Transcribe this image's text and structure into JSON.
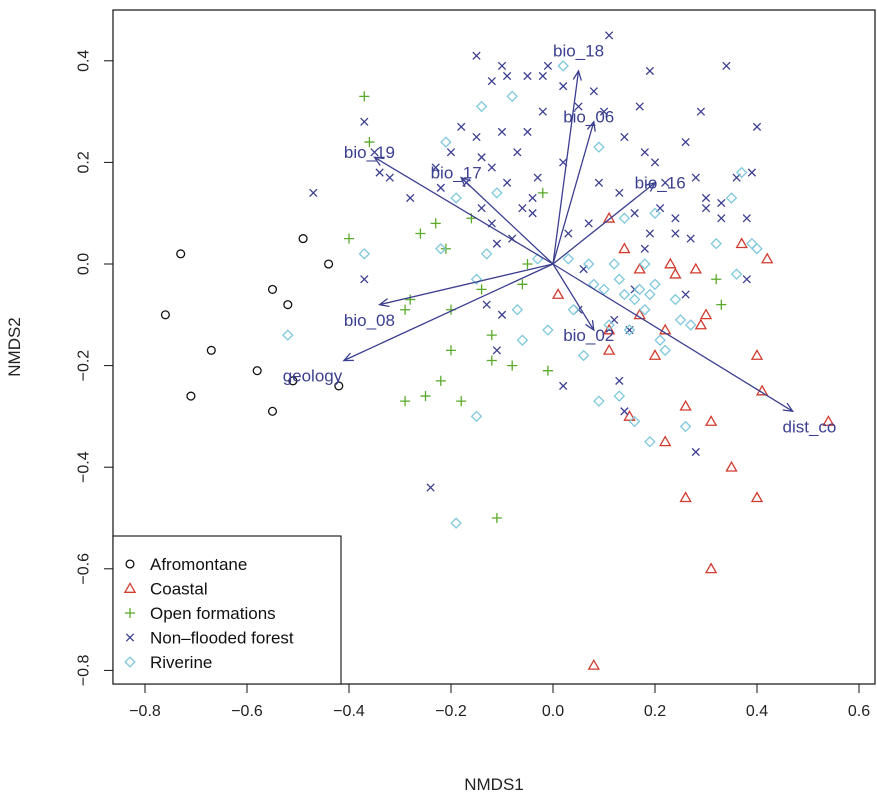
{
  "chart_data": {
    "type": "scatter",
    "xlabel": "NMDS1",
    "ylabel": "NMDS2",
    "xlim": [
      -0.86,
      0.64
    ],
    "ylim": [
      -0.85,
      0.47
    ],
    "x_ticks": [
      -0.8,
      -0.6,
      -0.4,
      -0.2,
      0.0,
      0.2,
      0.4,
      0.6
    ],
    "y_ticks": [
      -0.8,
      -0.6,
      -0.4,
      -0.2,
      0.0,
      0.2,
      0.4
    ],
    "x_tick_labels": [
      "−0.8",
      "−0.6",
      "−0.4",
      "−0.2",
      "0.0",
      "0.2",
      "0.4",
      "0.6"
    ],
    "y_tick_labels": [
      "−0.8",
      "−0.6",
      "−0.4",
      "−0.2",
      "0.0",
      "0.2",
      "0.4"
    ],
    "legend_position": "bottom-left",
    "series": [
      {
        "name": "Afromontane",
        "marker": "circle",
        "color": "#111111",
        "points": [
          [
            -0.73,
            0.02
          ],
          [
            -0.76,
            -0.1
          ],
          [
            -0.67,
            -0.17
          ],
          [
            -0.71,
            -0.26
          ],
          [
            -0.58,
            -0.21
          ],
          [
            -0.55,
            -0.29
          ],
          [
            -0.55,
            -0.05
          ],
          [
            -0.52,
            -0.08
          ],
          [
            -0.51,
            -0.23
          ],
          [
            -0.49,
            0.05
          ],
          [
            -0.44,
            0.0
          ],
          [
            -0.42,
            -0.24
          ]
        ]
      },
      {
        "name": "Coastal",
        "marker": "triangle",
        "color": "#d13b2e",
        "points": [
          [
            0.01,
            -0.06
          ],
          [
            0.11,
            0.09
          ],
          [
            0.14,
            0.03
          ],
          [
            0.17,
            -0.01
          ],
          [
            0.11,
            -0.13
          ],
          [
            0.11,
            -0.17
          ],
          [
            0.17,
            -0.1
          ],
          [
            0.2,
            -0.18
          ],
          [
            0.22,
            -0.13
          ],
          [
            0.23,
            0.0
          ],
          [
            0.24,
            -0.02
          ],
          [
            0.28,
            -0.01
          ],
          [
            0.29,
            -0.12
          ],
          [
            0.3,
            -0.1
          ],
          [
            0.31,
            -0.31
          ],
          [
            0.26,
            -0.28
          ],
          [
            0.15,
            -0.3
          ],
          [
            0.22,
            -0.35
          ],
          [
            0.26,
            -0.46
          ],
          [
            0.35,
            -0.4
          ],
          [
            0.4,
            -0.46
          ],
          [
            0.31,
            -0.6
          ],
          [
            0.37,
            0.04
          ],
          [
            0.4,
            -0.18
          ],
          [
            0.42,
            0.01
          ],
          [
            0.41,
            -0.25
          ],
          [
            0.54,
            -0.31
          ],
          [
            0.08,
            -0.79
          ]
        ]
      },
      {
        "name": "Open formations",
        "marker": "plus",
        "color": "#5aaa2a",
        "points": [
          [
            -0.37,
            0.33
          ],
          [
            -0.36,
            0.24
          ],
          [
            -0.4,
            0.05
          ],
          [
            -0.28,
            -0.07
          ],
          [
            -0.29,
            -0.09
          ],
          [
            -0.26,
            0.06
          ],
          [
            -0.23,
            0.08
          ],
          [
            -0.21,
            0.03
          ],
          [
            -0.2,
            -0.09
          ],
          [
            -0.2,
            -0.17
          ],
          [
            -0.16,
            0.09
          ],
          [
            -0.14,
            -0.05
          ],
          [
            -0.12,
            -0.14
          ],
          [
            -0.12,
            -0.19
          ],
          [
            -0.22,
            -0.23
          ],
          [
            -0.25,
            -0.26
          ],
          [
            -0.29,
            -0.27
          ],
          [
            -0.18,
            -0.27
          ],
          [
            -0.05,
            -0.0
          ],
          [
            -0.06,
            -0.04
          ],
          [
            -0.08,
            -0.2
          ],
          [
            -0.02,
            0.14
          ],
          [
            -0.01,
            -0.21
          ],
          [
            -0.11,
            -0.5
          ],
          [
            0.32,
            -0.03
          ],
          [
            0.33,
            -0.08
          ]
        ]
      },
      {
        "name": "Non–flooded forest",
        "marker": "cross",
        "color": "#3b3f8f",
        "points": [
          [
            -0.15,
            0.41
          ],
          [
            -0.12,
            0.36
          ],
          [
            -0.09,
            0.37
          ],
          [
            -0.05,
            0.37
          ],
          [
            -0.01,
            0.39
          ],
          [
            0.11,
            0.45
          ],
          [
            0.19,
            0.38
          ],
          [
            0.29,
            0.3
          ],
          [
            0.34,
            0.39
          ],
          [
            0.4,
            0.27
          ],
          [
            -0.37,
            0.28
          ],
          [
            -0.35,
            0.22
          ],
          [
            -0.34,
            0.18
          ],
          [
            -0.32,
            0.17
          ],
          [
            -0.28,
            0.13
          ],
          [
            -0.23,
            0.19
          ],
          [
            -0.2,
            0.22
          ],
          [
            -0.18,
            0.27
          ],
          [
            -0.17,
            0.16
          ],
          [
            -0.15,
            0.25
          ],
          [
            -0.14,
            0.21
          ],
          [
            -0.12,
            0.19
          ],
          [
            -0.1,
            0.26
          ],
          [
            -0.09,
            0.16
          ],
          [
            -0.07,
            0.22
          ],
          [
            -0.05,
            0.26
          ],
          [
            -0.03,
            0.17
          ],
          [
            -0.02,
            0.3
          ],
          [
            -0.04,
            0.13
          ],
          [
            0.02,
            0.2
          ],
          [
            0.05,
            0.31
          ],
          [
            0.08,
            0.34
          ],
          [
            0.1,
            0.3
          ],
          [
            0.14,
            0.25
          ],
          [
            0.17,
            0.31
          ],
          [
            0.18,
            0.22
          ],
          [
            0.2,
            0.2
          ],
          [
            0.22,
            0.16
          ],
          [
            0.26,
            0.24
          ],
          [
            0.28,
            0.17
          ],
          [
            0.3,
            0.13
          ],
          [
            0.33,
            0.12
          ],
          [
            0.36,
            0.17
          ],
          [
            0.39,
            0.18
          ],
          [
            -0.47,
            0.14
          ],
          [
            -0.14,
            0.11
          ],
          [
            -0.12,
            0.08
          ],
          [
            -0.11,
            0.04
          ],
          [
            -0.06,
            0.11
          ],
          [
            -0.08,
            0.05
          ],
          [
            -0.04,
            0.1
          ],
          [
            0.03,
            0.06
          ],
          [
            0.07,
            0.08
          ],
          [
            0.09,
            0.16
          ],
          [
            0.13,
            0.14
          ],
          [
            0.16,
            0.1
          ],
          [
            0.19,
            0.06
          ],
          [
            0.21,
            0.11
          ],
          [
            0.24,
            0.09
          ],
          [
            0.27,
            0.05
          ],
          [
            0.3,
            0.11
          ],
          [
            0.33,
            0.09
          ],
          [
            0.38,
            0.09
          ],
          [
            0.38,
            -0.03
          ],
          [
            -0.37,
            -0.03
          ],
          [
            -0.13,
            -0.08
          ],
          [
            -0.1,
            -0.1
          ],
          [
            -0.11,
            -0.17
          ],
          [
            0.05,
            -0.09
          ],
          [
            0.16,
            -0.05
          ],
          [
            0.02,
            -0.24
          ],
          [
            0.14,
            -0.29
          ],
          [
            0.28,
            -0.37
          ],
          [
            -0.24,
            -0.44
          ],
          [
            -0.1,
            0.39
          ],
          [
            0.02,
            0.35
          ],
          [
            -0.02,
            0.37
          ],
          [
            0.13,
            -0.23
          ],
          [
            0.18,
            0.03
          ],
          [
            0.24,
            0.06
          ],
          [
            0.26,
            -0.06
          ],
          [
            0.06,
            -0.01
          ],
          [
            0.15,
            -0.13
          ],
          [
            -0.22,
            0.15
          ],
          [
            0.12,
            -0.11
          ]
        ]
      },
      {
        "name": "Riverine",
        "marker": "diamond",
        "color": "#7fc8dc",
        "points": [
          [
            -0.14,
            0.31
          ],
          [
            -0.08,
            0.33
          ],
          [
            0.02,
            0.39
          ],
          [
            0.09,
            0.23
          ],
          [
            -0.21,
            0.24
          ],
          [
            -0.19,
            0.13
          ],
          [
            -0.22,
            0.03
          ],
          [
            -0.37,
            0.02
          ],
          [
            -0.52,
            -0.14
          ],
          [
            -0.15,
            -0.03
          ],
          [
            -0.13,
            0.02
          ],
          [
            -0.15,
            -0.3
          ],
          [
            -0.07,
            -0.09
          ],
          [
            -0.03,
            0.01
          ],
          [
            -0.01,
            -0.13
          ],
          [
            0.04,
            -0.09
          ],
          [
            0.08,
            -0.04
          ],
          [
            0.07,
            0.0
          ],
          [
            0.1,
            -0.05
          ],
          [
            0.11,
            -0.12
          ],
          [
            0.12,
            0.0
          ],
          [
            0.13,
            -0.03
          ],
          [
            0.14,
            -0.06
          ],
          [
            0.15,
            -0.13
          ],
          [
            0.16,
            -0.07
          ],
          [
            0.17,
            -0.05
          ],
          [
            0.18,
            -0.09
          ],
          [
            0.19,
            -0.06
          ],
          [
            0.2,
            -0.04
          ],
          [
            0.21,
            -0.15
          ],
          [
            0.22,
            -0.17
          ],
          [
            0.24,
            -0.07
          ],
          [
            0.25,
            -0.11
          ],
          [
            0.27,
            -0.12
          ],
          [
            0.18,
            0.0
          ],
          [
            0.2,
            0.1
          ],
          [
            0.14,
            0.09
          ],
          [
            0.09,
            -0.27
          ],
          [
            0.13,
            -0.26
          ],
          [
            0.16,
            -0.31
          ],
          [
            0.19,
            -0.35
          ],
          [
            0.26,
            -0.32
          ],
          [
            0.32,
            0.04
          ],
          [
            0.35,
            0.13
          ],
          [
            0.36,
            -0.02
          ],
          [
            0.39,
            0.04
          ],
          [
            0.4,
            0.03
          ],
          [
            0.03,
            0.01
          ],
          [
            -0.06,
            -0.15
          ],
          [
            -0.19,
            -0.51
          ],
          [
            0.37,
            0.18
          ],
          [
            -0.11,
            0.14
          ],
          [
            0.06,
            -0.18
          ]
        ]
      }
    ],
    "vectors": [
      {
        "label": "bio_18",
        "x": 0.05,
        "y": 0.38,
        "label_x": 0.0,
        "label_y": 0.42
      },
      {
        "label": "bio_06",
        "x": 0.08,
        "y": 0.28,
        "label_x": 0.02,
        "label_y": 0.29
      },
      {
        "label": "bio_19",
        "x": -0.35,
        "y": 0.21,
        "label_x": -0.41,
        "label_y": 0.22
      },
      {
        "label": "bio_17",
        "x": -0.18,
        "y": 0.17,
        "label_x": -0.24,
        "label_y": 0.18
      },
      {
        "label": "bio_16",
        "x": 0.2,
        "y": 0.16,
        "label_x": 0.16,
        "label_y": 0.16
      },
      {
        "label": "bio_08",
        "x": -0.34,
        "y": -0.08,
        "label_x": -0.41,
        "label_y": -0.11
      },
      {
        "label": "bio_02",
        "x": 0.08,
        "y": -0.13,
        "label_x": 0.02,
        "label_y": -0.14
      },
      {
        "label": "geology",
        "x": -0.41,
        "y": -0.19,
        "label_x": -0.53,
        "label_y": -0.22
      },
      {
        "label": "dist_co",
        "x": 0.47,
        "y": -0.29,
        "label_x": 0.45,
        "label_y": -0.32
      }
    ]
  }
}
